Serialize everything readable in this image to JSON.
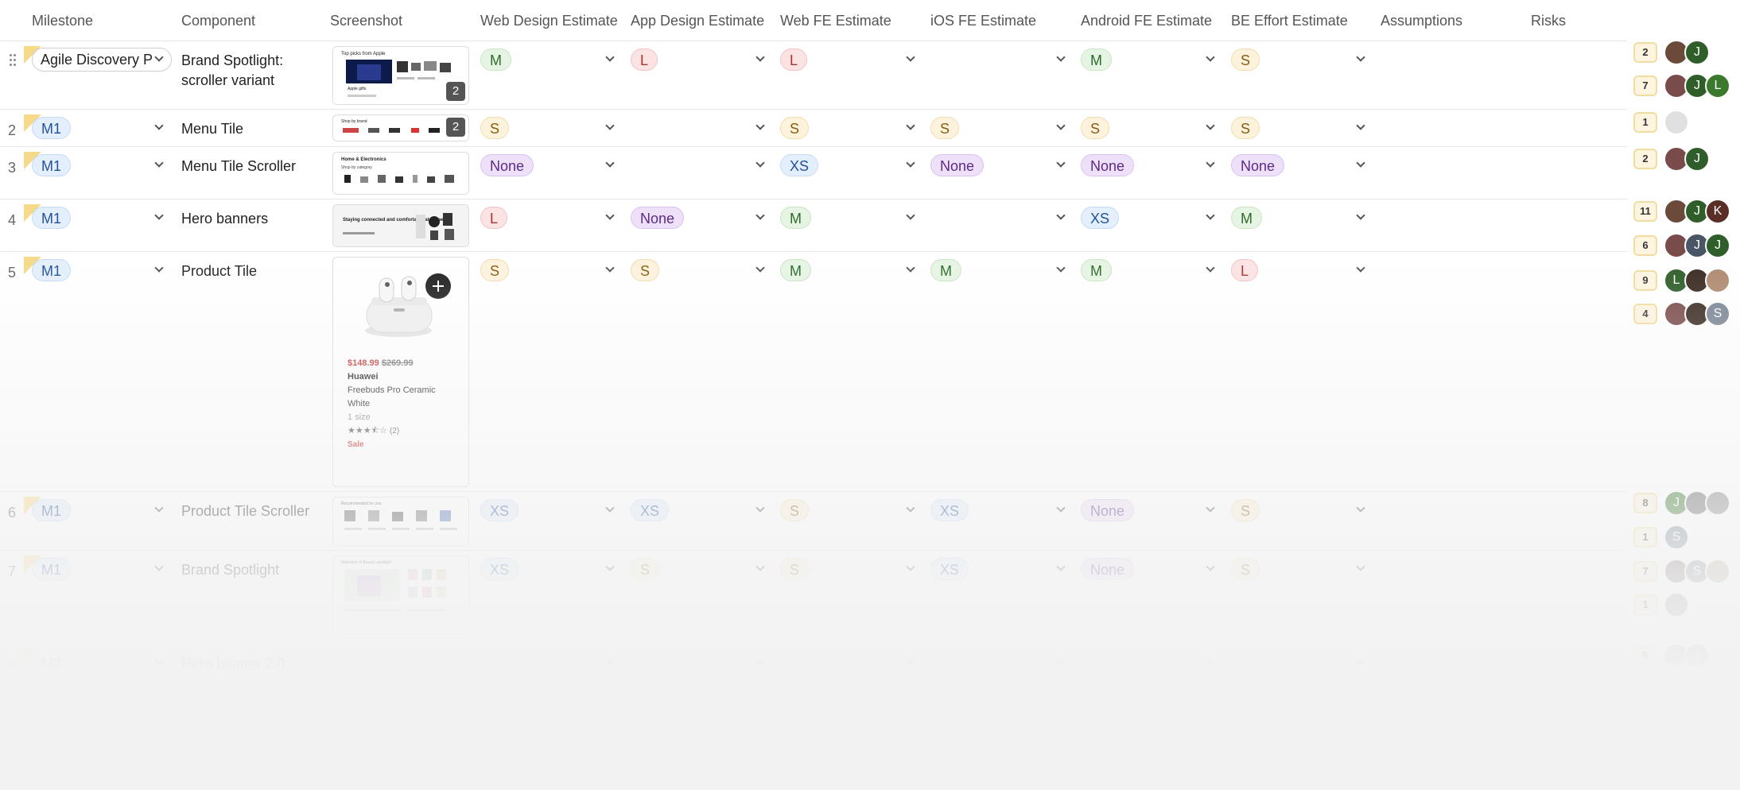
{
  "headers": {
    "milestone": "Milestone",
    "component": "Component",
    "screenshot": "Screenshot",
    "web_design": "Web Design Estimate",
    "app_design": "App Design Estimate",
    "web_fe": "Web FE Estimate",
    "ios_fe": "iOS FE Estimate",
    "android_fe": "Android FE Estimate",
    "be_effort": "BE Effort Estimate",
    "assumptions": "Assumptions",
    "risks": "Risks"
  },
  "rows": [
    {
      "num": "",
      "milestone": "Agile Discovery P",
      "component": "Brand Spotlight: scroller variant",
      "shot_count": "2",
      "web_design": "M",
      "app_design": "L",
      "web_fe": "L",
      "ios_fe": "",
      "android_fe": "M",
      "be_effort": "S"
    },
    {
      "num": "2",
      "milestone": "M1",
      "component": "Menu Tile",
      "shot_count": "2",
      "web_design": "S",
      "app_design": "",
      "web_fe": "S",
      "ios_fe": "S",
      "android_fe": "S",
      "be_effort": "S"
    },
    {
      "num": "3",
      "milestone": "M1",
      "component": "Menu Tile Scroller",
      "web_design": "None",
      "app_design": "",
      "web_fe": "XS",
      "ios_fe": "None",
      "android_fe": "None",
      "be_effort": "None"
    },
    {
      "num": "4",
      "milestone": "M1",
      "component": "Hero banners",
      "web_design": "L",
      "app_design": "None",
      "web_fe": "M",
      "ios_fe": "",
      "android_fe": "XS",
      "be_effort": "M"
    },
    {
      "num": "5",
      "milestone": "M1",
      "component": "Product Tile",
      "web_design": "S",
      "app_design": "S",
      "web_fe": "M",
      "ios_fe": "M",
      "android_fe": "M",
      "be_effort": "L"
    },
    {
      "num": "6",
      "milestone": "M1",
      "component": "Product Tile Scroller",
      "web_design": "XS",
      "app_design": "XS",
      "web_fe": "S",
      "ios_fe": "XS",
      "android_fe": "None",
      "be_effort": "S"
    },
    {
      "num": "7",
      "milestone": "M1",
      "component": "Brand Spotlight",
      "web_design": "XS",
      "app_design": "S",
      "web_fe": "S",
      "ios_fe": "XS",
      "android_fe": "None",
      "be_effort": "S"
    },
    {
      "num": "8",
      "milestone": "M2",
      "component": "Hero banner 2.0"
    }
  ],
  "product_tile": {
    "price": "$148.99",
    "old_price": "$269.99",
    "brand": "Huawei",
    "name": "Freebuds Pro Ceramic White",
    "size": "1 size",
    "reviews": "(2)",
    "sale": "Sale"
  },
  "thumb_text": {
    "apple_title": "Top picks from Apple",
    "apple_sub": "Apple gifts",
    "brand_title": "Shop by brand",
    "home_title": "Home & Electronics",
    "home_sub": "Shop by category",
    "hero_text": "Staying connected and comfortable at home",
    "recommended": "Recommended for you",
    "beauty": "Selection of Beauty spotlight"
  },
  "comments": [
    {
      "count": "2",
      "avatars": [
        "photo",
        "J"
      ]
    },
    {
      "count": "7",
      "avatars": [
        "photo",
        "J",
        "L"
      ]
    },
    {
      "count": "1",
      "avatars": [
        "placeholder"
      ]
    },
    {
      "count": "2",
      "avatars": [
        "photo",
        "J"
      ]
    },
    {
      "count": "11",
      "avatars": [
        "photo",
        "J",
        "K"
      ]
    },
    {
      "count": "6",
      "avatars": [
        "photo",
        "J",
        "J"
      ]
    },
    {
      "count": "9",
      "avatars": [
        "L",
        "photo",
        "photo"
      ]
    },
    {
      "count": "4",
      "avatars": [
        "photo",
        "photo",
        "S"
      ]
    },
    {
      "count": "8",
      "avatars": [
        "J",
        "photo",
        "photo"
      ]
    },
    {
      "count": "1",
      "avatars": [
        "S"
      ]
    },
    {
      "count": "7",
      "avatars": [
        "photo",
        "S",
        "photo"
      ]
    },
    {
      "count": "1",
      "avatars": [
        "photo"
      ]
    },
    {
      "count": "5",
      "avatars": [
        "photo",
        "J"
      ]
    }
  ],
  "colors": {
    "pill_S": "#fdf2dc",
    "pill_M": "#e6f5e3",
    "pill_L": "#fce3e3",
    "pill_XS": "#e3effc",
    "pill_None": "#efe0f9",
    "milestone": "#e3effc"
  }
}
